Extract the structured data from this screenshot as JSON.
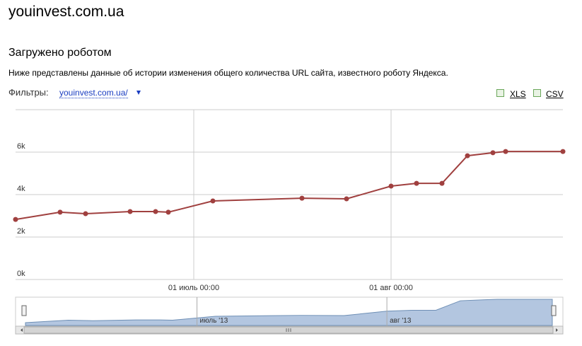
{
  "header": {
    "site": "youinvest.com.ua",
    "heading": "Загружено роботом",
    "description": "Ниже представлены данные об истории изменения общего количества URL сайта, известного роботу Яндекса.",
    "filters_label": "Фильтры:",
    "filter_value": "youinvest.com.ua/",
    "exports": [
      "XLS",
      "CSV"
    ]
  },
  "chart_data": {
    "type": "line",
    "x": [
      "06-03",
      "06-10",
      "06-14",
      "06-21",
      "06-25",
      "06-27",
      "07-04",
      "07-18",
      "07-25",
      "08-01",
      "08-05",
      "08-09",
      "08-13",
      "08-17",
      "08-19",
      "08-28"
    ],
    "values": [
      2830,
      3170,
      3100,
      3200,
      3200,
      3170,
      3700,
      3830,
      3800,
      4400,
      4530,
      4530,
      5830,
      5970,
      6030,
      6030
    ],
    "color": "#a0403f",
    "xlim": [
      "06-03",
      "08-28"
    ],
    "xticks": [
      {
        "value": "07-01",
        "label": "01 июль 00:00"
      },
      {
        "value": "08-01",
        "label": "01 авг 00:00"
      }
    ],
    "ylim": [
      0,
      8000
    ],
    "yticks": [
      {
        "value": 0,
        "label": "0k"
      },
      {
        "value": 2000,
        "label": "2k"
      },
      {
        "value": 4000,
        "label": "4k"
      },
      {
        "value": 6000,
        "label": "6k"
      }
    ],
    "grid": true,
    "navigator": {
      "xticks": [
        {
          "value": "07-01",
          "label": "июль '13"
        },
        {
          "value": "08-01",
          "label": "авг '13"
        }
      ]
    }
  }
}
